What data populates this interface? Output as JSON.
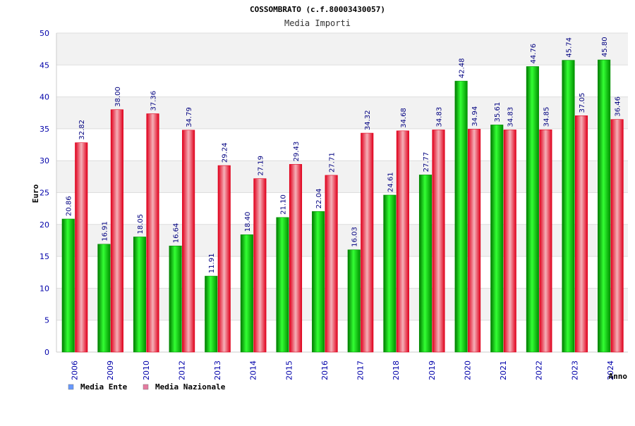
{
  "chart_data": {
    "type": "bar",
    "title": "COSSOMBRATO (c.f.80003430057)",
    "subtitle": "Media Importi",
    "xlabel": "Anno",
    "ylabel": "Euro",
    "ylim": [
      0,
      50
    ],
    "y_ticks": [
      "0",
      "5",
      "10",
      "15",
      "20",
      "25",
      "30",
      "35",
      "40",
      "45",
      "50"
    ],
    "grid": true,
    "legend_position": "bottom-left",
    "categories": [
      "2006",
      "2009",
      "2010",
      "2012",
      "2013",
      "2014",
      "2015",
      "2016",
      "2017",
      "2018",
      "2019",
      "2020",
      "2021",
      "2022",
      "2023",
      "2024"
    ],
    "series": [
      {
        "name": "Media Ente",
        "color": "#00b000",
        "legend_color": "#6699ff",
        "values": [
          20.86,
          16.91,
          18.05,
          16.64,
          11.91,
          18.4,
          21.1,
          22.04,
          16.03,
          24.61,
          27.77,
          42.48,
          35.61,
          44.76,
          45.74,
          45.8
        ],
        "labels": [
          "20.86",
          "16.91",
          "18.05",
          "16.64",
          "11.91",
          "18.40",
          "21.10",
          "22.04",
          "16.03",
          "24.61",
          "27.77",
          "42.48",
          "35.61",
          "44.76",
          "45.74",
          "45.80"
        ]
      },
      {
        "name": "Media Nazionale",
        "color": "#e0202e",
        "legend_color": "#e67aa0",
        "values": [
          32.82,
          38.0,
          37.36,
          34.79,
          29.24,
          27.19,
          29.43,
          27.71,
          34.32,
          34.68,
          34.83,
          34.94,
          34.83,
          34.85,
          37.05,
          36.46
        ],
        "labels": [
          "32.82",
          "38.00",
          "37.36",
          "34.79",
          "29.24",
          "27.19",
          "29.43",
          "27.71",
          "34.32",
          "34.68",
          "34.83",
          "34.94",
          "34.83",
          "34.85",
          "37.05",
          "36.46"
        ]
      }
    ]
  }
}
